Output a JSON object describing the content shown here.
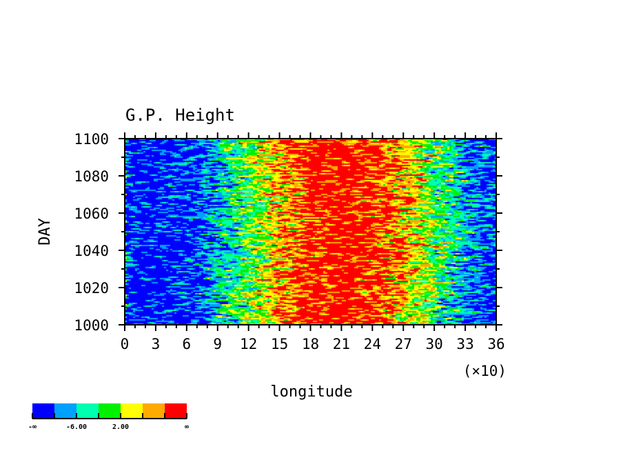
{
  "chart_data": {
    "type": "heatmap",
    "title": "G.P. Height",
    "xlabel": "longitude",
    "ylabel": "DAY",
    "x_multiplier": "(×10)",
    "xlim": [
      0,
      36
    ],
    "ylim": [
      1000,
      1100
    ],
    "xticks": [
      "0",
      "3",
      "6",
      "9",
      "12",
      "15",
      "18",
      "21",
      "24",
      "27",
      "30",
      "33",
      "36"
    ],
    "yticks": [
      "1000",
      "1020",
      "1040",
      "1060",
      "1080",
      "1100"
    ],
    "colorbar": {
      "colors": [
        "#0000ff",
        "#00a0ff",
        "#00ffb0",
        "#00f000",
        "#ffff00",
        "#ffaa00",
        "#ff0000"
      ],
      "labels": [
        "-∞",
        "-6.00",
        "2.00",
        "∞"
      ],
      "levels": [
        -10,
        -6,
        -2,
        2,
        6,
        10
      ]
    },
    "field_description_center_longitude": 20
  }
}
